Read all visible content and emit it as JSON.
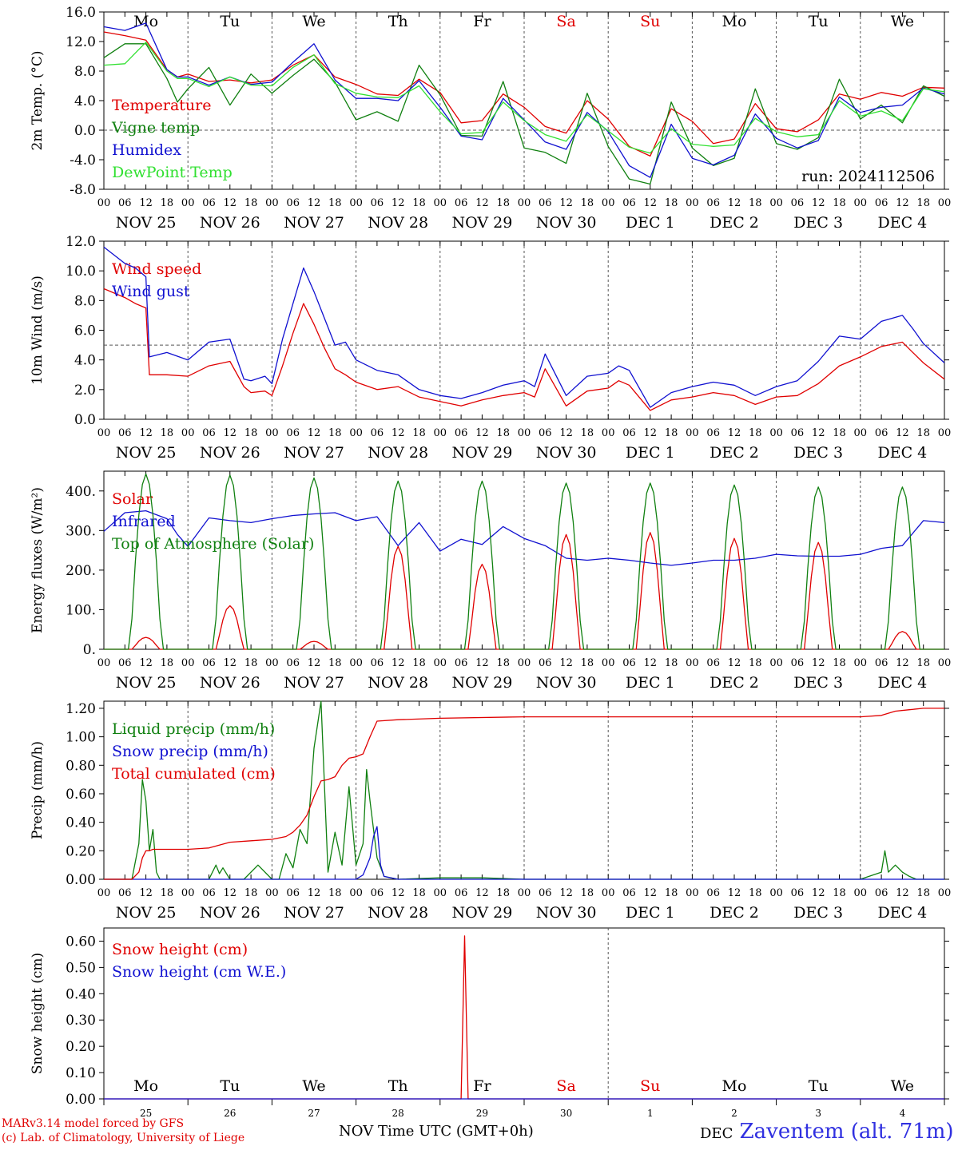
{
  "colors": {
    "red": "#e00000",
    "green": "#108010",
    "blue": "#1010d0",
    "lightgreen": "#30e030",
    "grid": "#555555"
  },
  "days": [
    {
      "dow": "Mo",
      "date": "NOV 25",
      "num": "25",
      "weekend": false
    },
    {
      "dow": "Tu",
      "date": "NOV 26",
      "num": "26",
      "weekend": false
    },
    {
      "dow": "We",
      "date": "NOV 27",
      "num": "27",
      "weekend": false
    },
    {
      "dow": "Th",
      "date": "NOV 28",
      "num": "28",
      "weekend": false
    },
    {
      "dow": "Fr",
      "date": "NOV 29",
      "num": "29",
      "weekend": false
    },
    {
      "dow": "Sa",
      "date": "NOV 30",
      "num": "30",
      "weekend": true
    },
    {
      "dow": "Su",
      "date": "DEC  1",
      "num": "1",
      "weekend": true
    },
    {
      "dow": "Mo",
      "date": "DEC  2",
      "num": "2",
      "weekend": false
    },
    {
      "dow": "Tu",
      "date": "DEC  3",
      "num": "3",
      "weekend": false
    },
    {
      "dow": "We",
      "date": "DEC  4",
      "num": "4",
      "weekend": false
    }
  ],
  "hour_ticks": [
    "00",
    "06",
    "12",
    "18"
  ],
  "last_hour_tick": "00",
  "footer": {
    "credit_line1": "MARv3.14 model forced by GFS",
    "credit_line2": "(c) Lab. of Climatology, University of Liege",
    "month_left": "NOV",
    "month_right": "DEC",
    "xaxis_title": "Time UTC (GMT+0h)",
    "station": "Zaventem (alt. 71m)"
  },
  "chart_data": [
    {
      "type": "line",
      "ylabel": "2m Temp. (°C)",
      "ylim": [
        -8,
        16
      ],
      "yticks": [
        "-8.0",
        "-4.0",
        "0.0",
        "4.0",
        "8.0",
        "12.0",
        "16.0"
      ],
      "reference_line": 0,
      "run_label": "run: 2024112506",
      "x_unit": "hours since 2024-11-25 00 UTC",
      "series": [
        {
          "name": "Temperature",
          "color": "red",
          "x": [
            0,
            6,
            12,
            18,
            21,
            24,
            30,
            36,
            42,
            48,
            54,
            60,
            66,
            72,
            78,
            84,
            90,
            96,
            102,
            108,
            114,
            120,
            126,
            132,
            138,
            144,
            150,
            156,
            162,
            168,
            174,
            180,
            186,
            192,
            198,
            204,
            210,
            216,
            222,
            228,
            234,
            240
          ],
          "y": [
            13.3,
            12.8,
            12.2,
            8.2,
            7.2,
            7.6,
            6.6,
            6.8,
            6.4,
            6.8,
            8.8,
            10.2,
            7.2,
            6.2,
            4.9,
            4.7,
            6.9,
            5.1,
            1.0,
            1.3,
            4.9,
            3.1,
            0.5,
            -0.4,
            4.0,
            1.5,
            -2.2,
            -3.5,
            2.9,
            1.2,
            -1.8,
            -1.2,
            3.6,
            0.2,
            -0.2,
            1.4,
            4.9,
            4.2,
            5.1,
            4.6,
            5.8,
            5.7
          ]
        },
        {
          "name": "Vigne temp",
          "color": "green",
          "x": [
            0,
            6,
            12,
            18,
            21,
            24,
            30,
            36,
            42,
            48,
            54,
            60,
            66,
            72,
            78,
            84,
            90,
            96,
            102,
            108,
            114,
            120,
            126,
            132,
            138,
            144,
            150,
            156,
            162,
            168,
            174,
            180,
            186,
            192,
            198,
            204,
            210,
            216,
            222,
            228,
            234,
            240
          ],
          "y": [
            9.8,
            11.7,
            11.7,
            7.0,
            3.8,
            5.6,
            8.5,
            3.4,
            7.6,
            5.0,
            7.4,
            9.6,
            6.5,
            1.4,
            2.5,
            1.2,
            8.8,
            4.8,
            -0.7,
            -0.8,
            6.6,
            -2.4,
            -3.0,
            -4.5,
            5.0,
            -2.2,
            -6.6,
            -7.3,
            3.8,
            -2.4,
            -4.8,
            -3.8,
            5.6,
            -1.8,
            -2.6,
            -1.0,
            6.9,
            1.5,
            3.4,
            1.0,
            6.0,
            4.6
          ]
        },
        {
          "name": "Humidex",
          "color": "blue",
          "x": [
            0,
            6,
            12,
            18,
            21,
            24,
            30,
            36,
            42,
            48,
            54,
            60,
            66,
            72,
            78,
            84,
            90,
            96,
            102,
            108,
            114,
            120,
            126,
            132,
            138,
            144,
            150,
            156,
            162,
            168,
            174,
            180,
            186,
            192,
            198,
            204,
            210,
            216,
            222,
            228,
            234,
            240
          ],
          "y": [
            14.0,
            13.5,
            14.5,
            8.2,
            7.2,
            7.2,
            6.1,
            7.2,
            6.2,
            6.5,
            9.2,
            11.7,
            6.8,
            4.3,
            4.3,
            4.0,
            6.7,
            3.1,
            -0.8,
            -1.3,
            4.3,
            1.4,
            -1.6,
            -2.6,
            2.4,
            -0.2,
            -4.8,
            -6.4,
            0.8,
            -3.8,
            -4.7,
            -3.4,
            2.2,
            -1.1,
            -2.4,
            -1.4,
            4.5,
            2.4,
            3.1,
            3.4,
            5.7,
            4.9
          ]
        },
        {
          "name": "DewPoint Temp",
          "color": "lightgreen",
          "x": [
            0,
            6,
            12,
            18,
            21,
            24,
            30,
            36,
            42,
            48,
            54,
            60,
            66,
            72,
            78,
            84,
            90,
            96,
            102,
            108,
            114,
            120,
            126,
            132,
            138,
            144,
            150,
            156,
            162,
            168,
            174,
            180,
            186,
            192,
            198,
            204,
            210,
            216,
            222,
            228,
            234,
            240
          ],
          "y": [
            8.8,
            9.0,
            11.9,
            8.0,
            7.0,
            7.0,
            5.9,
            7.2,
            6.1,
            6.0,
            8.5,
            10.2,
            6.3,
            5.0,
            4.5,
            4.4,
            6.0,
            2.5,
            -0.5,
            -0.3,
            3.8,
            1.3,
            -0.6,
            -1.5,
            2.1,
            -0.1,
            -2.3,
            -3.1,
            0.2,
            -1.9,
            -2.2,
            -2.0,
            1.6,
            -0.2,
            -0.9,
            -0.6,
            4.0,
            1.9,
            2.6,
            1.3,
            5.6,
            5.2
          ]
        }
      ]
    },
    {
      "type": "line",
      "ylabel": "10m Wind (m/s)",
      "ylim": [
        0,
        12
      ],
      "yticks": [
        "0.0",
        "2.0",
        "4.0",
        "6.0",
        "8.0",
        "10.0",
        "12.0"
      ],
      "reference_line": 5,
      "series": [
        {
          "name": "Wind speed",
          "color": "red",
          "x": [
            0,
            6,
            9,
            12,
            13,
            18,
            24,
            30,
            36,
            40,
            42,
            46,
            48,
            51,
            54,
            57,
            60,
            63,
            66,
            69,
            72,
            78,
            84,
            90,
            96,
            102,
            108,
            114,
            120,
            123,
            126,
            132,
            138,
            144,
            147,
            150,
            156,
            162,
            168,
            174,
            180,
            186,
            192,
            198,
            204,
            210,
            216,
            222,
            228,
            231,
            234,
            240
          ],
          "y": [
            8.8,
            8.2,
            7.8,
            7.5,
            3.0,
            3.0,
            2.9,
            3.6,
            3.9,
            2.2,
            1.8,
            1.9,
            1.6,
            3.6,
            5.8,
            7.8,
            6.4,
            4.8,
            3.4,
            3.0,
            2.5,
            2.0,
            2.2,
            1.5,
            1.2,
            0.9,
            1.3,
            1.6,
            1.8,
            1.5,
            3.4,
            0.9,
            1.9,
            2.1,
            2.6,
            2.3,
            0.6,
            1.3,
            1.5,
            1.8,
            1.6,
            1.0,
            1.5,
            1.6,
            2.4,
            3.6,
            4.2,
            4.9,
            5.2,
            4.5,
            3.8,
            2.7
          ]
        },
        {
          "name": "Wind gust",
          "color": "blue",
          "x": [
            0,
            6,
            9,
            12,
            13,
            18,
            24,
            30,
            36,
            40,
            42,
            46,
            48,
            51,
            54,
            57,
            60,
            63,
            66,
            69,
            72,
            78,
            84,
            90,
            96,
            102,
            108,
            114,
            120,
            123,
            126,
            132,
            138,
            144,
            147,
            150,
            156,
            162,
            168,
            174,
            180,
            186,
            192,
            198,
            204,
            210,
            216,
            222,
            228,
            231,
            234,
            240
          ],
          "y": [
            11.6,
            10.5,
            10.2,
            9.6,
            4.2,
            4.5,
            4.0,
            5.2,
            5.4,
            2.7,
            2.6,
            2.9,
            2.4,
            5.4,
            7.8,
            10.2,
            8.6,
            6.8,
            5.0,
            5.2,
            4.0,
            3.3,
            3.0,
            2.0,
            1.6,
            1.4,
            1.8,
            2.3,
            2.6,
            2.2,
            4.4,
            1.6,
            2.9,
            3.1,
            3.6,
            3.3,
            0.8,
            1.8,
            2.2,
            2.5,
            2.3,
            1.6,
            2.2,
            2.6,
            3.9,
            5.6,
            5.4,
            6.6,
            7.0,
            6.1,
            5.1,
            3.8
          ]
        }
      ]
    },
    {
      "type": "line",
      "ylabel": "Energy fluxes (W/m²)",
      "ylim": [
        0,
        450
      ],
      "yticks": [
        "0.",
        "100.",
        "200.",
        "300.",
        "400."
      ],
      "series": [
        {
          "name": "Solar",
          "color": "red",
          "solar_peaks_by_day": [
            30,
            110,
            20,
            260,
            215,
            290,
            295,
            280,
            270,
            45
          ]
        },
        {
          "name": "Infrared",
          "color": "blue",
          "x": [
            0,
            6,
            12,
            18,
            21,
            24,
            30,
            36,
            42,
            48,
            54,
            60,
            66,
            72,
            78,
            84,
            90,
            96,
            102,
            108,
            114,
            120,
            126,
            132,
            138,
            144,
            150,
            156,
            162,
            168,
            174,
            180,
            186,
            192,
            198,
            204,
            210,
            216,
            222,
            228,
            234,
            240
          ],
          "y": [
            298,
            345,
            350,
            330,
            290,
            260,
            332,
            325,
            320,
            330,
            338,
            342,
            345,
            325,
            335,
            262,
            320,
            248,
            278,
            265,
            310,
            280,
            262,
            230,
            225,
            230,
            225,
            218,
            212,
            218,
            225,
            225,
            230,
            240,
            236,
            235,
            235,
            240,
            255,
            262,
            325,
            320
          ]
        },
        {
          "name": "Top of Atmosphere (Solar)",
          "color": "green",
          "toa_peaks_by_day": [
            443,
            440,
            433,
            425,
            425,
            420,
            420,
            415,
            410,
            410
          ]
        }
      ]
    },
    {
      "type": "line",
      "ylabel": "Precip (mm/h)",
      "ylim": [
        0,
        1.25
      ],
      "yticks": [
        "0.00",
        "0.20",
        "0.40",
        "0.60",
        "0.80",
        "1.00",
        "1.20"
      ],
      "series": [
        {
          "name": "Liquid precip (mm/h)",
          "color": "green",
          "x": [
            0,
            8,
            10,
            11,
            12,
            13,
            14,
            15,
            16,
            18,
            24,
            30,
            32,
            33,
            34,
            36,
            40,
            44,
            48,
            50,
            52,
            54,
            56,
            58,
            60,
            62,
            64,
            66,
            68,
            70,
            72,
            74,
            75,
            76,
            78,
            80,
            84,
            96,
            108,
            120,
            168,
            216,
            222,
            223,
            224,
            226,
            228,
            230,
            232,
            240
          ],
          "y": [
            0,
            0,
            0.25,
            0.7,
            0.55,
            0.2,
            0.35,
            0.05,
            0,
            0,
            0,
            0,
            0.1,
            0.04,
            0.08,
            0,
            0,
            0.1,
            0,
            0,
            0.18,
            0.08,
            0.35,
            0.25,
            0.92,
            1.25,
            0.05,
            0.33,
            0.1,
            0.65,
            0.1,
            0.25,
            0.77,
            0.55,
            0.15,
            0.02,
            0,
            0.01,
            0.01,
            0,
            0,
            0,
            0.05,
            0.2,
            0.05,
            0.1,
            0.05,
            0.02,
            0,
            0
          ]
        },
        {
          "name": "Snow precip (mm/h)",
          "color": "blue",
          "x": [
            0,
            72,
            74,
            76,
            77,
            78,
            79,
            80,
            82,
            84,
            240
          ],
          "y": [
            0,
            0,
            0.03,
            0.15,
            0.3,
            0.37,
            0.1,
            0.02,
            0.01,
            0,
            0
          ]
        },
        {
          "name": "Total cumulated (cm)",
          "color": "red",
          "x": [
            0,
            8,
            10,
            11,
            12,
            13,
            14,
            16,
            18,
            24,
            30,
            36,
            42,
            48,
            52,
            54,
            56,
            58,
            60,
            62,
            64,
            66,
            68,
            70,
            72,
            74,
            76,
            78,
            84,
            96,
            120,
            144,
            168,
            216,
            222,
            226,
            230,
            234,
            240
          ],
          "y": [
            0,
            0,
            0.05,
            0.15,
            0.2,
            0.2,
            0.21,
            0.21,
            0.21,
            0.21,
            0.22,
            0.26,
            0.27,
            0.28,
            0.3,
            0.33,
            0.38,
            0.45,
            0.58,
            0.69,
            0.7,
            0.72,
            0.8,
            0.85,
            0.86,
            0.88,
            1.0,
            1.11,
            1.12,
            1.13,
            1.14,
            1.14,
            1.14,
            1.14,
            1.15,
            1.18,
            1.19,
            1.2,
            1.2
          ]
        }
      ]
    },
    {
      "type": "line",
      "ylabel": "Snow height (cm)",
      "ylim": [
        0,
        0.65
      ],
      "yticks": [
        "0.00",
        "0.10",
        "0.20",
        "0.30",
        "0.40",
        "0.50",
        "0.60"
      ],
      "series": [
        {
          "name": "Snow height (cm)",
          "color": "red",
          "x": [
            0,
            102,
            103,
            104,
            240
          ],
          "y": [
            0,
            0,
            0.62,
            0,
            0
          ]
        },
        {
          "name": "Snow height (cm W.E.)",
          "color": "blue",
          "x": [
            0,
            240
          ],
          "y": [
            0,
            0
          ]
        }
      ]
    }
  ]
}
